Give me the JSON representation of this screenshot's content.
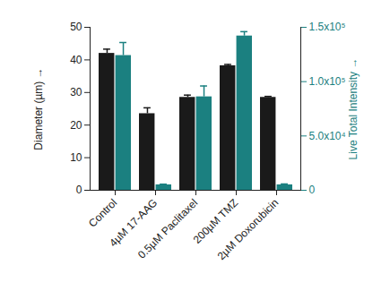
{
  "chart_data": {
    "type": "bar",
    "categories": [
      "Control",
      "4µM 17-AAG",
      "0.5µM Paclitaxel",
      "200µM TMZ",
      "2µM Doxorubicin"
    ],
    "ylabel": "Diameter (µm)",
    "y2label": "Live Total Intensity",
    "ylim": [
      0,
      50
    ],
    "yticks": [
      0,
      10,
      20,
      30,
      40,
      50
    ],
    "y2lim": [
      0,
      150000
    ],
    "y2ticks": [
      0,
      {
        "value": 50000,
        "label": "5.0x10⁴"
      },
      {
        "value": 100000,
        "label": "1.0x10⁵"
      },
      {
        "value": 150000,
        "label": "1.5x10⁵"
      }
    ],
    "series": [
      {
        "color": "#1a1a1a",
        "values": [
          42,
          23.5,
          28.5,
          38.2,
          28.5
        ],
        "errors": [
          1.3,
          1.8,
          0.7,
          0.4,
          0.3
        ]
      },
      {
        "color": "#1b8080",
        "axis": "y2",
        "values": [
          124000,
          5000,
          86000,
          142000,
          5000
        ],
        "errors": [
          12000,
          600,
          10000,
          4000,
          800
        ]
      }
    ]
  }
}
